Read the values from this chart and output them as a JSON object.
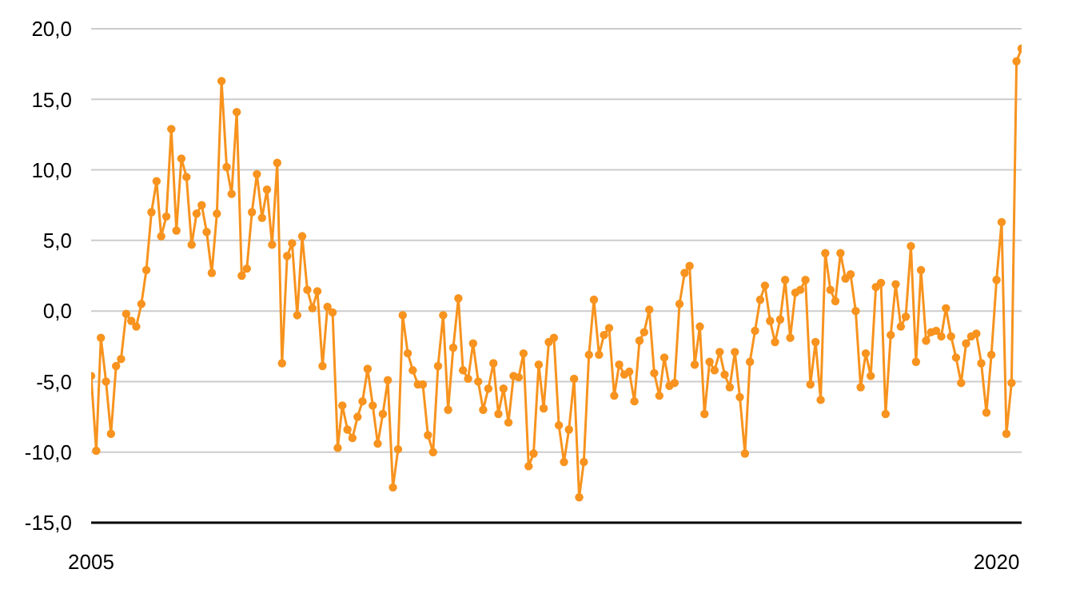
{
  "chart_data": {
    "type": "line",
    "x": [
      "2005-01",
      "2005-02",
      "2005-03",
      "2005-04",
      "2005-05",
      "2005-06",
      "2005-07",
      "2005-08",
      "2005-09",
      "2005-10",
      "2005-11",
      "2005-12",
      "2006-01",
      "2006-02",
      "2006-03",
      "2006-04",
      "2006-05",
      "2006-06",
      "2006-07",
      "2006-08",
      "2006-09",
      "2006-10",
      "2006-11",
      "2006-12",
      "2007-01",
      "2007-02",
      "2007-03",
      "2007-04",
      "2007-05",
      "2007-06",
      "2007-07",
      "2007-08",
      "2007-09",
      "2007-10",
      "2007-11",
      "2007-12",
      "2008-01",
      "2008-02",
      "2008-03",
      "2008-04",
      "2008-05",
      "2008-06",
      "2008-07",
      "2008-08",
      "2008-09",
      "2008-10",
      "2008-11",
      "2008-12",
      "2009-01",
      "2009-02",
      "2009-03",
      "2009-04",
      "2009-05",
      "2009-06",
      "2009-07",
      "2009-08",
      "2009-09",
      "2009-10",
      "2009-11",
      "2009-12",
      "2010-01",
      "2010-02",
      "2010-03",
      "2010-04",
      "2010-05",
      "2010-06",
      "2010-07",
      "2010-08",
      "2010-09",
      "2010-10",
      "2010-11",
      "2010-12",
      "2011-01",
      "2011-02",
      "2011-03",
      "2011-04",
      "2011-05",
      "2011-06",
      "2011-07",
      "2011-08",
      "2011-09",
      "2011-10",
      "2011-11",
      "2011-12",
      "2012-01",
      "2012-02",
      "2012-03",
      "2012-04",
      "2012-05",
      "2012-06",
      "2012-07",
      "2012-08",
      "2012-09",
      "2012-10",
      "2012-11",
      "2012-12",
      "2013-01",
      "2013-02",
      "2013-03",
      "2013-04",
      "2013-05",
      "2013-06",
      "2013-07",
      "2013-08",
      "2013-09",
      "2013-10",
      "2013-11",
      "2013-12",
      "2014-01",
      "2014-02",
      "2014-03",
      "2014-04",
      "2014-05",
      "2014-06",
      "2014-07",
      "2014-08",
      "2014-09",
      "2014-10",
      "2014-11",
      "2014-12",
      "2015-01",
      "2015-02",
      "2015-03",
      "2015-04",
      "2015-05",
      "2015-06",
      "2015-07",
      "2015-08",
      "2015-09",
      "2015-10",
      "2015-11",
      "2015-12",
      "2016-01",
      "2016-02",
      "2016-03",
      "2016-04",
      "2016-05",
      "2016-06",
      "2016-07",
      "2016-08",
      "2016-09",
      "2016-10",
      "2016-11",
      "2016-12",
      "2017-01",
      "2017-02",
      "2017-03",
      "2017-04",
      "2017-05",
      "2017-06",
      "2017-07",
      "2017-08",
      "2017-09",
      "2017-10",
      "2017-11",
      "2017-12",
      "2018-01",
      "2018-02",
      "2018-03",
      "2018-04",
      "2018-05",
      "2018-06",
      "2018-07",
      "2018-08",
      "2018-09",
      "2018-10",
      "2018-11",
      "2018-12",
      "2019-01",
      "2019-02",
      "2019-03",
      "2019-04",
      "2019-05",
      "2019-06",
      "2019-07",
      "2019-08",
      "2019-09",
      "2019-10",
      "2019-11",
      "2019-12",
      "2020-01",
      "2020-02",
      "2020-03",
      "2020-04",
      "2020-05",
      "2020-06"
    ],
    "series": [
      {
        "color": "#f7931e",
        "values": [
          -4.6,
          -9.9,
          -1.9,
          -5.0,
          -8.7,
          -3.9,
          -3.4,
          -0.2,
          -0.7,
          -1.1,
          0.5,
          2.9,
          7.0,
          9.2,
          5.3,
          6.7,
          12.9,
          5.7,
          10.8,
          9.5,
          4.7,
          6.9,
          7.5,
          5.6,
          2.7,
          6.9,
          16.3,
          10.2,
          8.3,
          14.1,
          2.5,
          3.0,
          7.0,
          9.7,
          6.6,
          8.6,
          4.7,
          10.5,
          -3.7,
          3.9,
          4.8,
          -0.3,
          5.3,
          1.5,
          0.2,
          1.4,
          -3.9,
          0.3,
          -0.1,
          -9.7,
          -6.7,
          -8.4,
          -9.0,
          -7.5,
          -6.4,
          -4.1,
          -6.7,
          -9.4,
          -7.3,
          -4.9,
          -12.5,
          -9.8,
          -0.3,
          -3.0,
          -4.2,
          -5.2,
          -5.2,
          -8.8,
          -10.0,
          -3.9,
          -0.3,
          -7.0,
          -2.6,
          0.9,
          -4.2,
          -4.8,
          -2.3,
          -5.0,
          -7.0,
          -5.5,
          -3.7,
          -7.3,
          -5.5,
          -7.9,
          -4.6,
          -4.7,
          -3.0,
          -11.0,
          -10.1,
          -3.8,
          -6.9,
          -2.2,
          -1.9,
          -8.1,
          -10.7,
          -8.4,
          -4.8,
          -13.2,
          -10.7,
          -3.1,
          0.8,
          -3.1,
          -1.7,
          -1.2,
          -6.0,
          -3.8,
          -4.5,
          -4.3,
          -6.4,
          -2.1,
          -1.5,
          0.1,
          -4.4,
          -6.0,
          -3.3,
          -5.3,
          -5.1,
          0.5,
          2.7,
          3.2,
          -3.8,
          -1.1,
          -7.3,
          -3.6,
          -4.2,
          -2.9,
          -4.5,
          -5.4,
          -2.9,
          -6.1,
          -10.1,
          -3.6,
          -1.4,
          0.8,
          1.8,
          -0.7,
          -2.2,
          -0.6,
          2.2,
          -1.9,
          1.3,
          1.5,
          2.2,
          -5.2,
          -2.2,
          -6.3,
          4.1,
          1.5,
          0.7,
          4.1,
          2.3,
          2.6,
          0.0,
          -5.4,
          -3.0,
          -4.6,
          1.7,
          2.0,
          -7.3,
          -1.7,
          1.9,
          -1.1,
          -0.4,
          4.6,
          -3.6,
          2.9,
          -2.1,
          -1.5,
          -1.4,
          -1.8,
          0.2,
          -1.8,
          -3.3,
          -5.1,
          -2.3,
          -1.8,
          -1.6,
          -3.7,
          -7.2,
          -3.1,
          2.2,
          6.3,
          -8.7,
          -5.1,
          17.7,
          18.6
        ]
      }
    ],
    "xlim": [
      "2005-01",
      "2020-06"
    ],
    "xticks": [
      {
        "value": "2005-01",
        "label": "2005"
      },
      {
        "value": "2020-01",
        "label": "2020"
      }
    ],
    "ylim": [
      -15,
      20
    ],
    "yticks": [
      {
        "value": -15,
        "label": "-15,0"
      },
      {
        "value": -10,
        "label": "-10,0"
      },
      {
        "value": -5,
        "label": "-5,0"
      },
      {
        "value": 0,
        "label": "0,0"
      },
      {
        "value": 5,
        "label": "5,0"
      },
      {
        "value": 10,
        "label": "10,0"
      },
      {
        "value": 15,
        "label": "15,0"
      },
      {
        "value": 20,
        "label": "20,0"
      }
    ],
    "grid": "y",
    "marker": "circle",
    "line_style": "solid"
  }
}
